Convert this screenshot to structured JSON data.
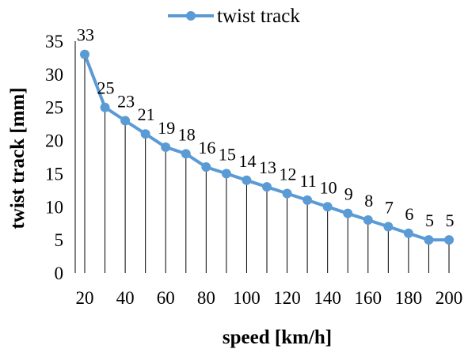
{
  "chart_data": {
    "type": "line",
    "title": "",
    "xlabel": "speed [km/h]",
    "ylabel": "twist track [mm]",
    "x": [
      20,
      30,
      40,
      50,
      60,
      70,
      80,
      90,
      100,
      110,
      120,
      130,
      140,
      150,
      160,
      170,
      180,
      190,
      200
    ],
    "x_tick_labels": [
      "20",
      "40",
      "60",
      "80",
      "100",
      "120",
      "140",
      "160",
      "180",
      "200"
    ],
    "y_tick_labels": [
      "0",
      "5",
      "10",
      "15",
      "20",
      "25",
      "30",
      "35"
    ],
    "ylim": [
      0,
      35
    ],
    "legend_position": "top",
    "series": [
      {
        "name": "twist track",
        "color": "#5b9bd5",
        "values": [
          33,
          25,
          23,
          21,
          19,
          18,
          16,
          15,
          14,
          13,
          12,
          11,
          10,
          9,
          8,
          7,
          6,
          5,
          5
        ],
        "data_labels": [
          "33",
          "25",
          "23",
          "21",
          "19",
          "18",
          "16",
          "15",
          "14",
          "13",
          "12",
          "11",
          "10",
          "9",
          "8",
          "7",
          "6",
          "5",
          "5"
        ]
      }
    ],
    "drop_lines": true
  }
}
